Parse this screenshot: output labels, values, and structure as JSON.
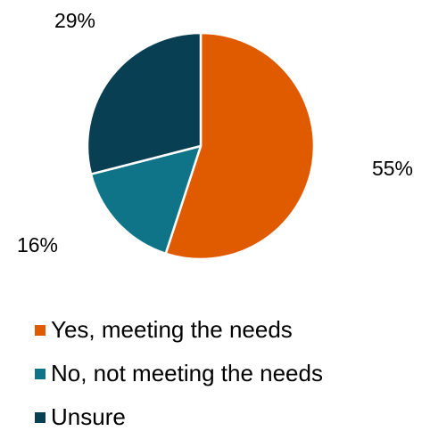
{
  "chart_data": {
    "type": "pie",
    "categories": [
      "Yes, meeting the needs",
      "No, not meeting the needs",
      "Unsure"
    ],
    "values": [
      55,
      16,
      29
    ],
    "labels": [
      "55%",
      "16%",
      "29%"
    ],
    "colors": [
      "#E05A00",
      "#0F7487",
      "#093F52"
    ],
    "start_angle_deg": 0,
    "direction": "clockwise",
    "legend_position": "bottom"
  }
}
